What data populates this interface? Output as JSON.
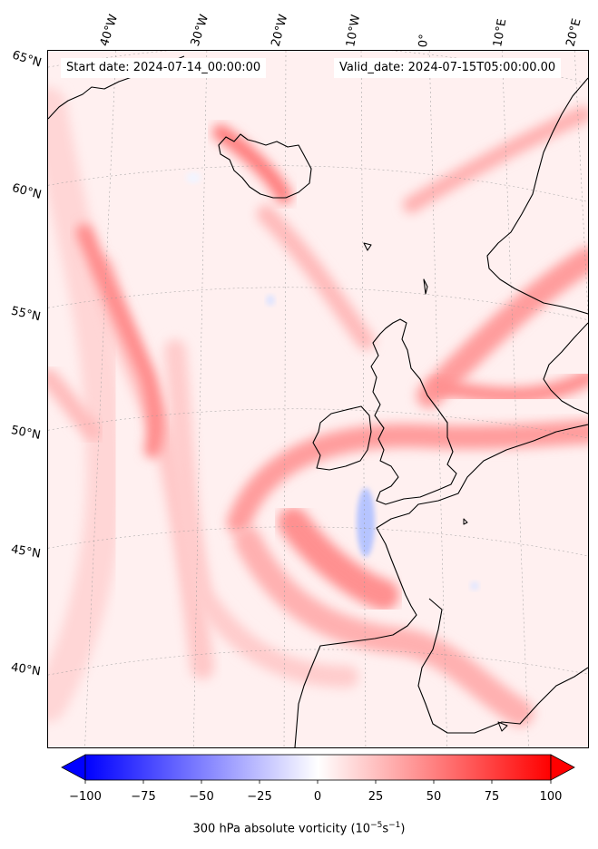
{
  "header": {
    "start_date": "Start date: 2024-07-14_00:00:00",
    "valid_date": "Valid_date: 2024-07-15T05:00:00.00"
  },
  "longitude_labels": [
    "40°W",
    "30°W",
    "20°W",
    "10°W",
    "0°",
    "10°E",
    "20°E"
  ],
  "latitude_labels": [
    "65°N",
    "60°N",
    "55°N",
    "50°N",
    "45°N",
    "40°N"
  ],
  "colorbar": {
    "ticks": [
      "−100",
      "−75",
      "−50",
      "−25",
      "0",
      "25",
      "50",
      "75",
      "100"
    ],
    "min": -100,
    "max": 100,
    "label_prefix": "300 hPa absolute vorticity (10",
    "label_exp1": "−5",
    "label_mid": "s",
    "label_exp2": "−1",
    "label_suffix": ")",
    "colors": {
      "negative": "#0000ff",
      "zero": "#ffffff",
      "positive": "#ff0000"
    }
  }
}
